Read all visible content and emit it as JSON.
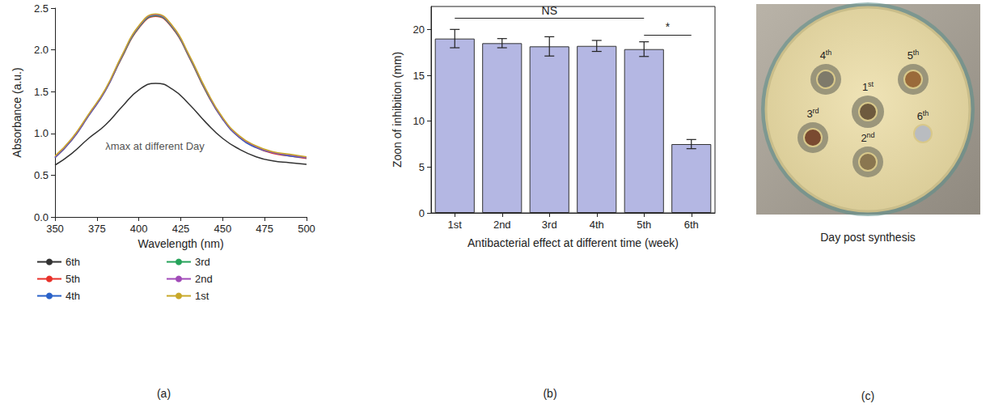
{
  "chart_data": [
    {
      "type": "line",
      "title": "(a)",
      "x_label": "Wavelength (nm)",
      "y_label": "Absorbance (a.u.)",
      "x": [
        350,
        360,
        370,
        380,
        390,
        400,
        410,
        420,
        430,
        440,
        450,
        460,
        470,
        480,
        490,
        500
      ],
      "series": [
        {
          "name": "6th",
          "color": "#333333",
          "values": [
            0.62,
            0.76,
            0.94,
            1.1,
            1.32,
            1.52,
            1.6,
            1.53,
            1.35,
            1.13,
            0.94,
            0.81,
            0.72,
            0.67,
            0.65,
            0.63
          ]
        },
        {
          "name": "5th",
          "color": "#e8312a",
          "values": [
            0.71,
            0.92,
            1.21,
            1.51,
            1.91,
            2.26,
            2.4,
            2.26,
            1.91,
            1.5,
            1.17,
            0.95,
            0.83,
            0.76,
            0.73,
            0.7
          ]
        },
        {
          "name": "4th",
          "color": "#2a62c9",
          "values": [
            0.71,
            0.92,
            1.21,
            1.51,
            1.92,
            2.27,
            2.41,
            2.27,
            1.92,
            1.51,
            1.17,
            0.95,
            0.83,
            0.77,
            0.73,
            0.71
          ]
        },
        {
          "name": "3rd",
          "color": "#26a35a",
          "values": [
            0.72,
            0.93,
            1.22,
            1.52,
            1.92,
            2.27,
            2.41,
            2.27,
            1.92,
            1.51,
            1.18,
            0.96,
            0.84,
            0.77,
            0.74,
            0.71
          ]
        },
        {
          "name": "2nd",
          "color": "#a14bb8",
          "values": [
            0.72,
            0.93,
            1.22,
            1.52,
            1.93,
            2.28,
            2.42,
            2.28,
            1.93,
            1.52,
            1.18,
            0.96,
            0.84,
            0.77,
            0.74,
            0.71
          ]
        },
        {
          "name": "1st",
          "color": "#c8a829",
          "values": [
            0.73,
            0.94,
            1.23,
            1.53,
            1.94,
            2.29,
            2.43,
            2.29,
            1.94,
            1.53,
            1.19,
            0.97,
            0.85,
            0.78,
            0.75,
            0.72
          ]
        }
      ],
      "xlim": [
        350,
        500
      ],
      "xticks": [
        350,
        375,
        400,
        425,
        450,
        475,
        500
      ],
      "ylim": [
        0,
        2.5
      ],
      "yticks": [
        {
          "value": 0,
          "label": "0.0"
        },
        0.5,
        {
          "value": 1,
          "label": "1.0"
        },
        1.5,
        {
          "value": 2,
          "label": "2.0"
        },
        2.5
      ],
      "annotations": [
        {
          "text": "λmax at different Day",
          "x": 380,
          "y": 0.85
        }
      ],
      "legend": "bottom",
      "grid": false
    },
    {
      "type": "bar",
      "title": "(b)",
      "x_label": "Antibacterial effect at different time (week)",
      "y_label": "Zoon of inhibition (mm)",
      "categories": [
        "1st",
        "2nd",
        "3rd",
        "4th",
        "5th",
        "6th"
      ],
      "values": [
        19.0,
        18.5,
        18.15,
        18.2,
        17.85,
        7.5
      ],
      "errors": [
        1.0,
        0.5,
        1.05,
        0.6,
        0.8,
        0.5
      ],
      "color": "#b4b7e3",
      "ylim": [
        0,
        22.5
      ],
      "yticks": [
        0,
        5,
        10,
        15,
        20
      ],
      "annotations": [
        {
          "text": "NS",
          "from": "1st",
          "to": "5th",
          "y": 21.2
        },
        {
          "text": "*",
          "from": "5th",
          "to": "6th",
          "y": 19.4
        }
      ],
      "grid": false
    }
  ],
  "photo": {
    "title": "(c)",
    "caption": "Day post synthesis",
    "wells": [
      "1st",
      "2nd",
      "3rd",
      "4th",
      "5th",
      "6th"
    ]
  }
}
